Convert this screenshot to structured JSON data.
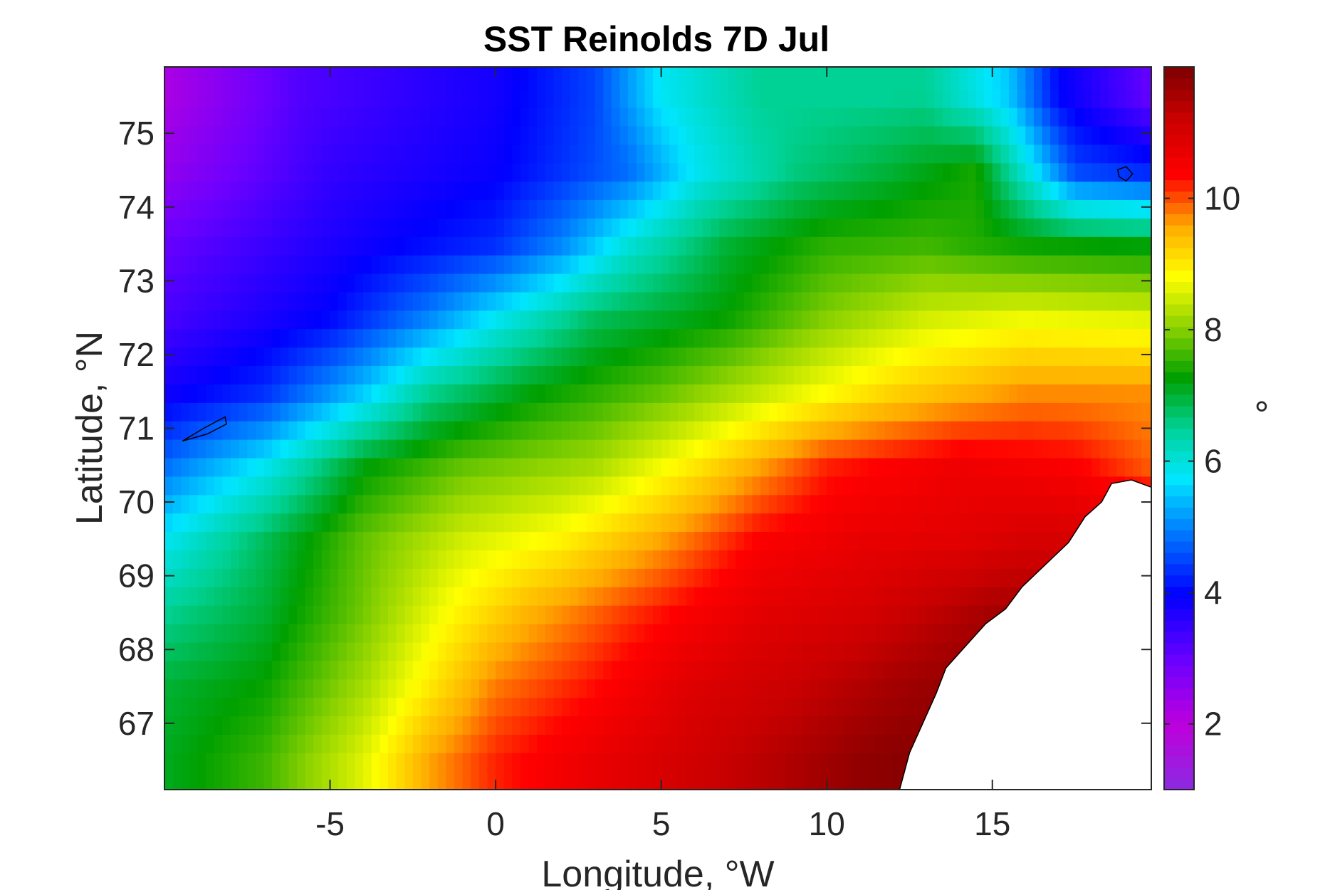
{
  "chart_data": {
    "type": "heatmap",
    "title": "SST Reinolds 7D Jul",
    "xlabel": "Longitude, °W",
    "ylabel": "Latitude, °N",
    "colorbar_label": "°",
    "xlim": [
      -10,
      19.8
    ],
    "ylim": [
      66.1,
      75.9
    ],
    "xticks": [
      -5,
      0,
      5,
      10,
      15
    ],
    "yticks": [
      67,
      68,
      69,
      70,
      71,
      72,
      73,
      74,
      75
    ],
    "clim": [
      1,
      12
    ],
    "colorbar_ticks": [
      2,
      4,
      6,
      8,
      10
    ],
    "grid_resolution_deg": {
      "lon": 0.25,
      "lat": 0.25
    },
    "colormap": "rainbow (purple-blue-cyan-green-yellow-orange-red-dark red)",
    "grid": false,
    "land_color": "#ffffff",
    "coastline_color": "#000000",
    "sst_gradient_control_points": {
      "description": "Approximate SST (°C) read from the colours, by latitude row and longitude",
      "rows": [
        {
          "lat": 75.5,
          "points": [
            [
              -10,
              2.2
            ],
            [
              -6,
              3.2
            ],
            [
              0,
              3.8
            ],
            [
              3,
              4.5
            ],
            [
              5,
              5.8
            ],
            [
              8,
              6.5
            ],
            [
              13,
              6.5
            ],
            [
              15.5,
              5.5
            ],
            [
              17,
              4.0
            ],
            [
              19.8,
              3.0
            ]
          ]
        },
        {
          "lat": 74.5,
          "points": [
            [
              -10,
              2.5
            ],
            [
              -5,
              3.5
            ],
            [
              0,
              3.9
            ],
            [
              4,
              4.8
            ],
            [
              6,
              5.8
            ],
            [
              9,
              6.6
            ],
            [
              12,
              7.0
            ],
            [
              14.5,
              7.4
            ],
            [
              16,
              6.0
            ],
            [
              17.5,
              4.5
            ],
            [
              19.8,
              4.2
            ]
          ]
        },
        {
          "lat": 73.5,
          "points": [
            [
              -10,
              3.0
            ],
            [
              -5,
              3.7
            ],
            [
              0,
              4.3
            ],
            [
              2,
              5.0
            ],
            [
              4,
              6.0
            ],
            [
              7,
              7.0
            ],
            [
              10,
              7.5
            ],
            [
              13,
              7.6
            ],
            [
              16,
              7.3
            ],
            [
              19.8,
              7.2
            ]
          ]
        },
        {
          "lat": 72.5,
          "points": [
            [
              -10,
              3.3
            ],
            [
              -5,
              4.0
            ],
            [
              -2,
              5.0
            ],
            [
              0,
              5.8
            ],
            [
              3,
              6.8
            ],
            [
              7,
              7.3
            ],
            [
              10,
              8.0
            ],
            [
              13,
              8.5
            ],
            [
              16,
              8.7
            ],
            [
              19.8,
              8.6
            ]
          ]
        },
        {
          "lat": 71.5,
          "points": [
            [
              -10,
              3.8
            ],
            [
              -7,
              4.3
            ],
            [
              -4,
              5.5
            ],
            [
              -2,
              6.5
            ],
            [
              1,
              7.2
            ],
            [
              5,
              7.8
            ],
            [
              9,
              8.6
            ],
            [
              12,
              9.2
            ],
            [
              16,
              9.7
            ],
            [
              19.8,
              9.7
            ]
          ]
        },
        {
          "lat": 70.5,
          "points": [
            [
              -10,
              4.8
            ],
            [
              -7,
              5.8
            ],
            [
              -4,
              7.2
            ],
            [
              -1,
              7.8
            ],
            [
              3,
              8.2
            ],
            [
              6,
              9.0
            ],
            [
              10,
              10.2
            ],
            [
              14,
              10.6
            ],
            [
              17.5,
              10.4
            ],
            [
              19.8,
              9.9
            ]
          ]
        },
        {
          "lat": 69.5,
          "points": [
            [
              -10,
              5.8
            ],
            [
              -7,
              6.8
            ],
            [
              -4,
              7.8
            ],
            [
              -1,
              8.5
            ],
            [
              2,
              8.9
            ],
            [
              5,
              9.6
            ],
            [
              8,
              10.4
            ],
            [
              11,
              10.7
            ],
            [
              14,
              10.8
            ],
            [
              16,
              11.0
            ]
          ]
        },
        {
          "lat": 68.5,
          "points": [
            [
              -10,
              6.5
            ],
            [
              -7,
              7.0
            ],
            [
              -4,
              7.9
            ],
            [
              -1.5,
              8.8
            ],
            [
              1,
              9.5
            ],
            [
              4,
              10.1
            ],
            [
              8,
              10.8
            ],
            [
              11,
              11.0
            ],
            [
              13,
              11.3
            ],
            [
              15,
              11.6
            ]
          ]
        },
        {
          "lat": 67.5,
          "points": [
            [
              -10,
              7.0
            ],
            [
              -7,
              7.3
            ],
            [
              -4,
              8.2
            ],
            [
              -2,
              9.0
            ],
            [
              0,
              9.8
            ],
            [
              3,
              10.3
            ],
            [
              6,
              10.9
            ],
            [
              9,
              11.2
            ],
            [
              12,
              11.6
            ],
            [
              14,
              11.8
            ]
          ]
        },
        {
          "lat": 66.5,
          "points": [
            [
              -10,
              7.1
            ],
            [
              -7,
              7.6
            ],
            [
              -4,
              8.6
            ],
            [
              -2,
              9.6
            ],
            [
              0,
              10.2
            ],
            [
              3,
              10.7
            ],
            [
              6,
              11.1
            ],
            [
              9,
              11.5
            ],
            [
              11,
              11.8
            ],
            [
              12.5,
              11.9
            ]
          ]
        }
      ]
    },
    "land_areas": [
      {
        "name": "Norway",
        "mask": "east of about 12.2°W at 66.1°N, ~14.5°W at 67.7°N, ~16°W at 68.8°N, ~17.5°W at 69.6°N, ~18.5°W at 70.3°N"
      },
      {
        "name": "Jan Mayen",
        "center": [
          -8.6,
          71.0
        ]
      },
      {
        "name": "Bjørnøya",
        "center": [
          19.0,
          74.45
        ]
      }
    ]
  }
}
